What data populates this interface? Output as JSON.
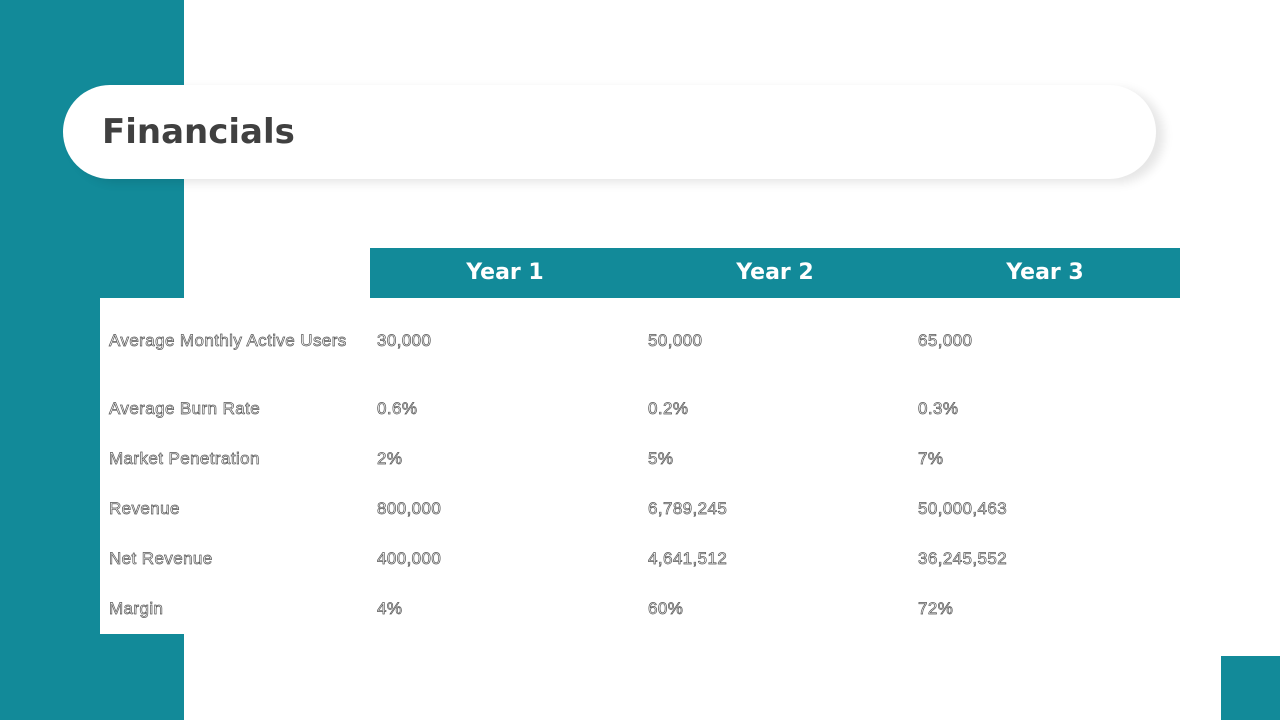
{
  "title": "Financials",
  "table": {
    "headers": [
      "Year 1",
      "Year 2",
      "Year 3"
    ],
    "rows": [
      {
        "label": "Average Monthly Active Users",
        "values": [
          "30,000",
          "50,000",
          "65,000"
        ]
      },
      {
        "label": "Average Burn Rate",
        "values": [
          "0.6%",
          "0.2%",
          "0.3%"
        ]
      },
      {
        "label": "Market Penetration",
        "values": [
          "2%",
          "5%",
          "7%"
        ]
      },
      {
        "label": "Revenue",
        "values": [
          "800,000",
          "6,789,245",
          "50,000,463"
        ]
      },
      {
        "label": "Net Revenue",
        "values": [
          "400,000",
          "4,641,512",
          "36,245,552"
        ]
      },
      {
        "label": "Margin",
        "values": [
          "4%",
          "60%",
          "72%"
        ]
      }
    ]
  },
  "colors": {
    "accent": "#128a99",
    "title_text": "#404040",
    "body_text_outline": "#555555"
  }
}
